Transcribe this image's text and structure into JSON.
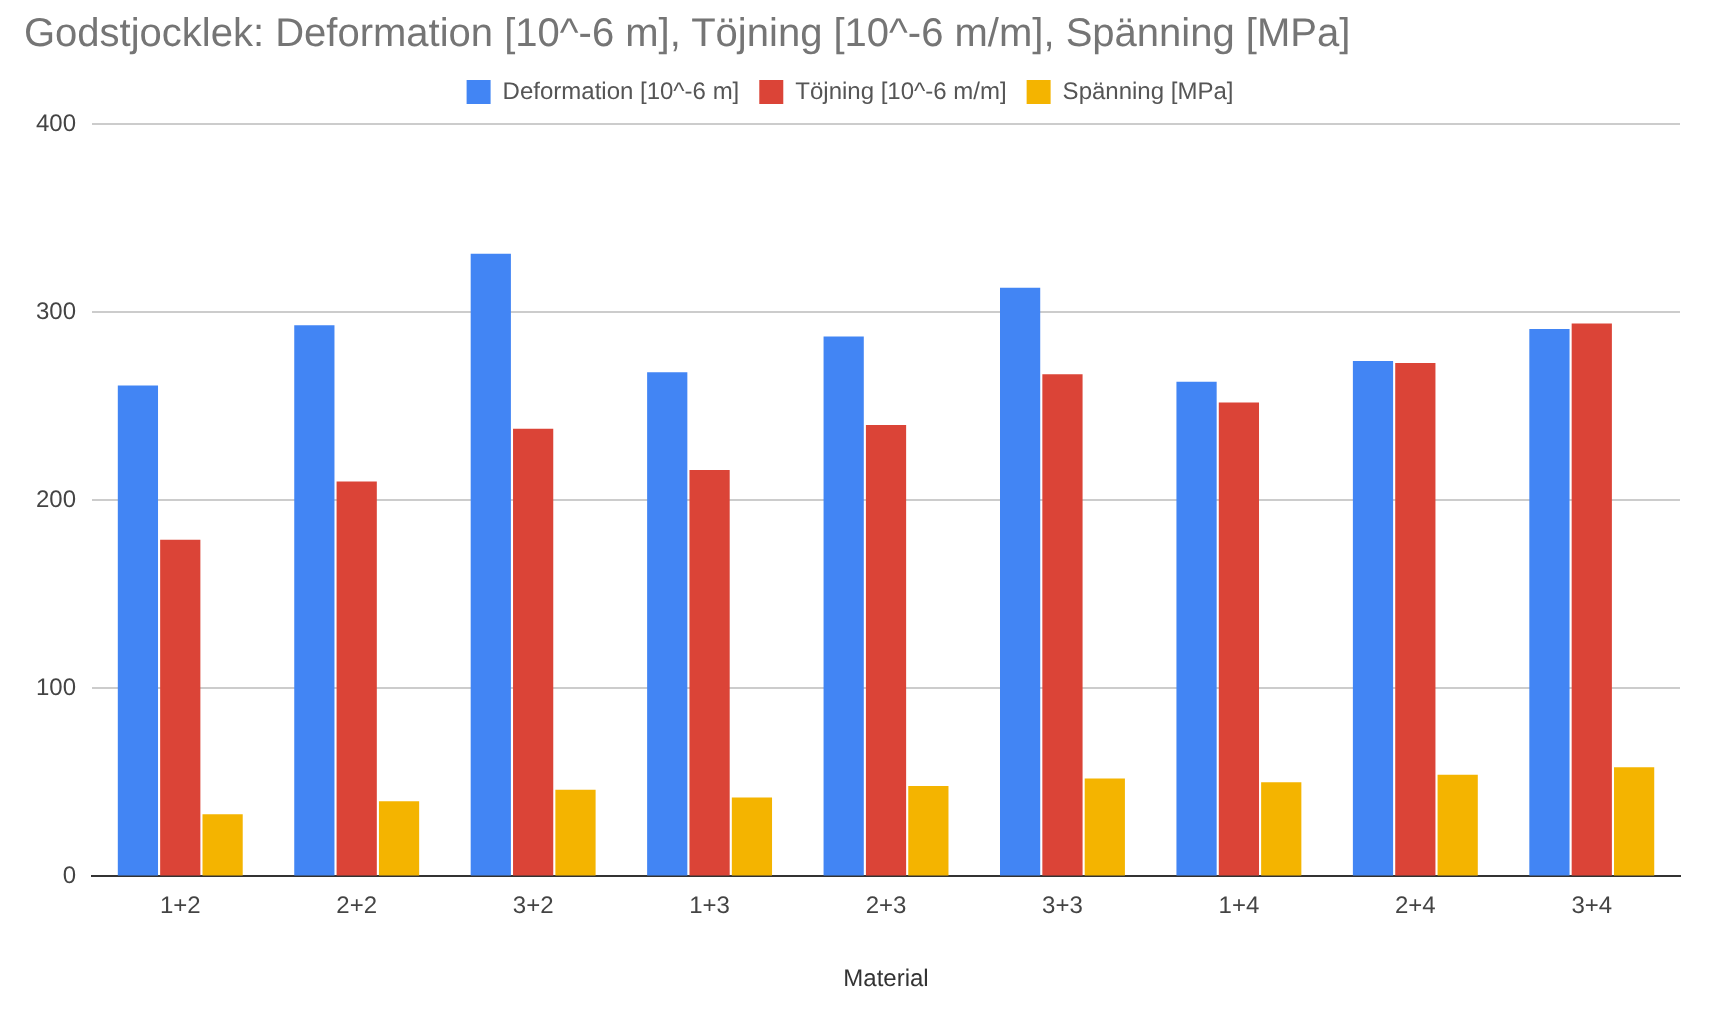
{
  "chart_data": {
    "type": "bar",
    "title": "Godstjocklek: Deformation [10^-6 m], Töjning [10^-6 m/m], Spänning [MPa]",
    "xlabel": "Material",
    "categories": [
      "1+2",
      "2+2",
      "3+2",
      "1+3",
      "2+3",
      "3+3",
      "1+4",
      "2+4",
      "3+4"
    ],
    "series": [
      {
        "name": "Deformation [10^-6 m]",
        "color": "#4285f4",
        "values": [
          261,
          293,
          331,
          268,
          287,
          313,
          263,
          274,
          291
        ]
      },
      {
        "name": "Töjning [10^-6 m/m]",
        "color": "#db4437",
        "values": [
          179,
          210,
          238,
          216,
          240,
          267,
          252,
          273,
          294
        ]
      },
      {
        "name": "Spänning [MPa]",
        "color": "#f4b400",
        "values": [
          33,
          40,
          46,
          42,
          48,
          52,
          50,
          54,
          58
        ]
      }
    ],
    "ylim": [
      0,
      400
    ],
    "yticks": [
      0,
      100,
      200,
      300,
      400
    ],
    "grid": "y",
    "legend": "top"
  }
}
